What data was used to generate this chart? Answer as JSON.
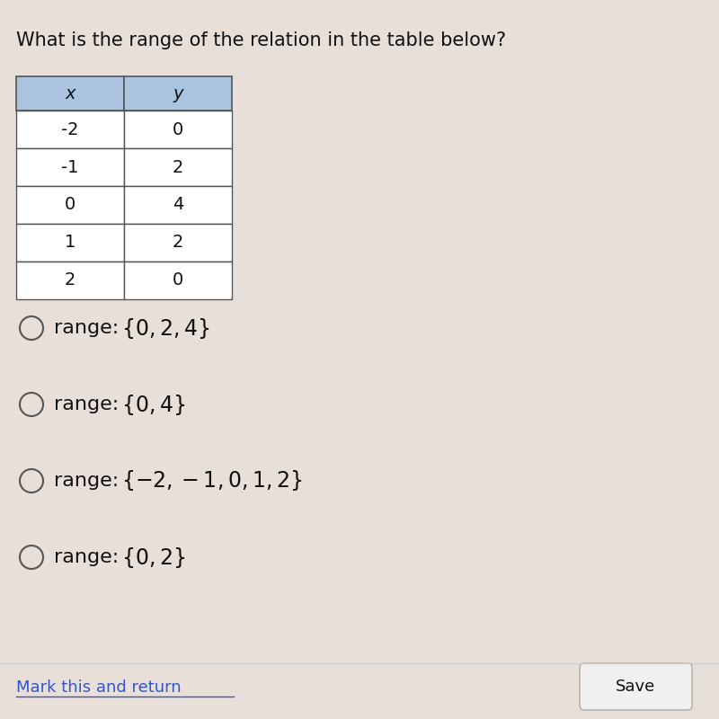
{
  "title": "What is the range of the relation in the table below?",
  "title_fontsize": 15,
  "table_headers": [
    "x",
    "y"
  ],
  "table_data": [
    [
      "-2",
      "0"
    ],
    [
      "-1",
      "2"
    ],
    [
      "0",
      "4"
    ],
    [
      "1",
      "2"
    ],
    [
      "2",
      "0"
    ]
  ],
  "header_bg": "#aac4e0",
  "table_border_color": "#555555",
  "option_texts": [
    [
      "{0,2,4}"
    ],
    [
      "{0,4}"
    ],
    [
      "{-2,-1,0,1,2}"
    ],
    [
      "{0,2}"
    ]
  ],
  "background_color": "#e8e0d8",
  "text_color": "#111111",
  "link_color": "#3355cc",
  "option_fontsize": 16,
  "save_button_text": "Save",
  "mark_text": "Mark this and return"
}
